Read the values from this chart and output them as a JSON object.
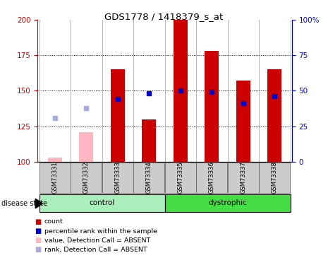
{
  "title": "GDS1778 / 1418379_s_at",
  "samples": [
    "GSM73331",
    "GSM73332",
    "GSM73333",
    "GSM73334",
    "GSM73335",
    "GSM73336",
    "GSM73337",
    "GSM73338"
  ],
  "red_bars": [
    null,
    null,
    165,
    130,
    200,
    178,
    157,
    165
  ],
  "pink_bars": [
    103,
    121,
    null,
    null,
    null,
    null,
    null,
    null
  ],
  "blue_squares": [
    null,
    null,
    144,
    148,
    150,
    149,
    141,
    146
  ],
  "light_blue_squares": [
    131,
    138,
    null,
    null,
    null,
    null,
    null,
    null
  ],
  "bar_bottom": 100,
  "ylim": [
    100,
    200
  ],
  "y2lim": [
    0,
    100
  ],
  "yticks": [
    100,
    125,
    150,
    175,
    200
  ],
  "y2ticks": [
    0,
    25,
    50,
    75,
    100
  ],
  "red_color": "#CC0000",
  "pink_color": "#FFB6C1",
  "blue_color": "#0000CC",
  "light_blue_color": "#AAAADD",
  "group_colors_control": "#AAEEBB",
  "group_colors_dystrophic": "#44DD44",
  "bar_width": 0.45,
  "square_size": 25,
  "legend_items": [
    {
      "label": "count",
      "color": "#CC0000"
    },
    {
      "label": "percentile rank within the sample",
      "color": "#0000CC"
    },
    {
      "label": "value, Detection Call = ABSENT",
      "color": "#FFB6C1"
    },
    {
      "label": "rank, Detection Call = ABSENT",
      "color": "#AAAADD"
    }
  ]
}
